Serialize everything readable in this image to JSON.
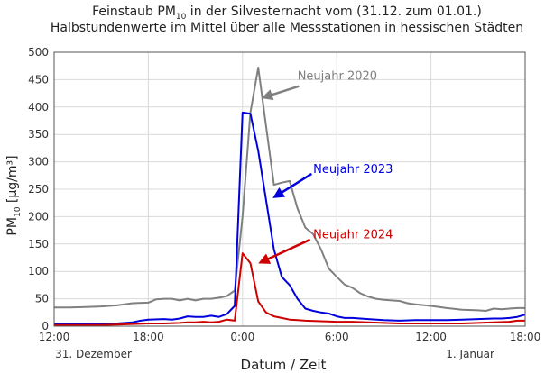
{
  "chart_data": {
    "type": "line",
    "title_line1_prefix": "Feinstaub PM",
    "title_line1_sub": "10",
    "title_line1_suffix": " in der Silvesternacht vom (31.12. zum 01.01.)",
    "title_line2": "Halbstundenwerte im Mittel über alle Messstationen in hessischen Städten",
    "ylabel_prefix": "PM",
    "ylabel_sub": "10",
    "ylabel_suffix": " [µg/m³]",
    "xlabel": "Datum / Zeit",
    "ylim": [
      0,
      500
    ],
    "yticks": [
      0,
      50,
      100,
      150,
      200,
      250,
      300,
      350,
      400,
      450,
      500
    ],
    "xlim": [
      0,
      30
    ],
    "xticks": [
      {
        "hours": 0,
        "label": "12:00"
      },
      {
        "hours": 6,
        "label": "18:00"
      },
      {
        "hours": 12,
        "label": "0:00"
      },
      {
        "hours": 18,
        "label": "6:00"
      },
      {
        "hours": 24,
        "label": "12:00"
      },
      {
        "hours": 30,
        "label": "18:00"
      }
    ],
    "date_labels": [
      {
        "hours": 2.5,
        "label": "31. Dezember"
      },
      {
        "hours": 26.5,
        "label": "1. Januar"
      }
    ],
    "x_unit": "hours since 31.12. 12:00",
    "grid": true,
    "series": [
      {
        "name": "Neujahr 2020",
        "color": "#808080",
        "label_hours": 15.5,
        "label_value": 450,
        "arrow_from": [
          15.6,
          438
        ],
        "arrow_to": [
          13.4,
          418
        ],
        "points": [
          [
            0,
            34
          ],
          [
            1,
            34
          ],
          [
            2,
            35
          ],
          [
            3,
            36
          ],
          [
            4,
            38
          ],
          [
            5,
            42
          ],
          [
            6,
            43
          ],
          [
            6.5,
            49
          ],
          [
            7,
            50
          ],
          [
            7.5,
            50
          ],
          [
            8,
            47
          ],
          [
            8.5,
            50
          ],
          [
            9,
            47
          ],
          [
            9.5,
            50
          ],
          [
            10,
            50
          ],
          [
            10.5,
            52
          ],
          [
            11,
            55
          ],
          [
            11.5,
            65
          ],
          [
            12,
            200
          ],
          [
            12.5,
            390
          ],
          [
            13,
            472
          ],
          [
            13.5,
            365
          ],
          [
            14,
            258
          ],
          [
            14.5,
            262
          ],
          [
            15,
            265
          ],
          [
            15.5,
            215
          ],
          [
            16,
            180
          ],
          [
            16.5,
            168
          ],
          [
            17,
            140
          ],
          [
            17.5,
            105
          ],
          [
            18,
            90
          ],
          [
            18.5,
            76
          ],
          [
            19,
            70
          ],
          [
            19.5,
            60
          ],
          [
            20,
            54
          ],
          [
            20.5,
            50
          ],
          [
            21,
            48
          ],
          [
            22,
            46
          ],
          [
            22.5,
            42
          ],
          [
            23,
            40
          ],
          [
            24,
            37
          ],
          [
            25,
            33
          ],
          [
            26,
            30
          ],
          [
            27,
            29
          ],
          [
            27.5,
            28
          ],
          [
            28,
            32
          ],
          [
            28.5,
            31
          ],
          [
            29,
            32
          ],
          [
            29.5,
            33
          ],
          [
            30,
            33
          ]
        ]
      },
      {
        "name": "Neujahr 2023",
        "color": "#0000dd",
        "label_hours": 16.5,
        "label_value": 280,
        "arrow_from": [
          16.4,
          278
        ],
        "arrow_to": [
          14.1,
          237
        ],
        "points": [
          [
            0,
            4
          ],
          [
            1,
            4
          ],
          [
            2,
            4
          ],
          [
            3,
            5
          ],
          [
            4,
            5
          ],
          [
            5,
            7
          ],
          [
            5.5,
            10
          ],
          [
            6,
            12
          ],
          [
            7,
            13
          ],
          [
            7.5,
            12
          ],
          [
            8,
            14
          ],
          [
            8.5,
            18
          ],
          [
            9,
            17
          ],
          [
            9.5,
            17
          ],
          [
            10,
            19
          ],
          [
            10.5,
            17
          ],
          [
            11,
            22
          ],
          [
            11.5,
            37
          ],
          [
            12,
            390
          ],
          [
            12.5,
            388
          ],
          [
            13,
            320
          ],
          [
            13.5,
            230
          ],
          [
            14,
            140
          ],
          [
            14.5,
            90
          ],
          [
            15,
            75
          ],
          [
            15.5,
            50
          ],
          [
            16,
            32
          ],
          [
            16.5,
            28
          ],
          [
            17,
            25
          ],
          [
            17.5,
            23
          ],
          [
            18,
            18
          ],
          [
            18.5,
            15
          ],
          [
            19,
            15
          ],
          [
            20,
            13
          ],
          [
            21,
            11
          ],
          [
            22,
            10
          ],
          [
            23,
            11
          ],
          [
            24,
            11
          ],
          [
            25,
            11
          ],
          [
            26,
            12
          ],
          [
            27,
            13
          ],
          [
            28,
            14
          ],
          [
            28.5,
            14
          ],
          [
            29,
            15
          ],
          [
            29.5,
            17
          ],
          [
            30,
            21
          ]
        ]
      },
      {
        "name": "Neujahr 2024",
        "color": "#cc0000",
        "label_hours": 16.5,
        "label_value": 160,
        "arrow_from": [
          16.3,
          158
        ],
        "arrow_to": [
          13.2,
          117
        ],
        "points": [
          [
            0,
            2
          ],
          [
            1,
            2
          ],
          [
            2,
            2
          ],
          [
            3,
            2
          ],
          [
            4,
            3
          ],
          [
            5,
            4
          ],
          [
            6,
            5
          ],
          [
            7,
            5
          ],
          [
            8,
            6
          ],
          [
            8.5,
            7
          ],
          [
            9,
            7
          ],
          [
            9.5,
            8
          ],
          [
            10,
            7
          ],
          [
            10.5,
            8
          ],
          [
            11,
            12
          ],
          [
            11.5,
            10
          ],
          [
            12,
            133
          ],
          [
            12.5,
            115
          ],
          [
            13,
            45
          ],
          [
            13.5,
            25
          ],
          [
            14,
            18
          ],
          [
            14.5,
            15
          ],
          [
            15,
            12
          ],
          [
            15.5,
            11
          ],
          [
            16,
            10
          ],
          [
            17,
            9
          ],
          [
            18,
            8
          ],
          [
            19,
            8
          ],
          [
            20,
            7
          ],
          [
            21,
            6
          ],
          [
            22,
            5
          ],
          [
            23,
            5
          ],
          [
            24,
            5
          ],
          [
            25,
            5
          ],
          [
            26,
            5
          ],
          [
            27,
            6
          ],
          [
            28,
            7
          ],
          [
            29,
            8
          ],
          [
            29.5,
            10
          ],
          [
            30,
            10
          ]
        ]
      }
    ]
  }
}
